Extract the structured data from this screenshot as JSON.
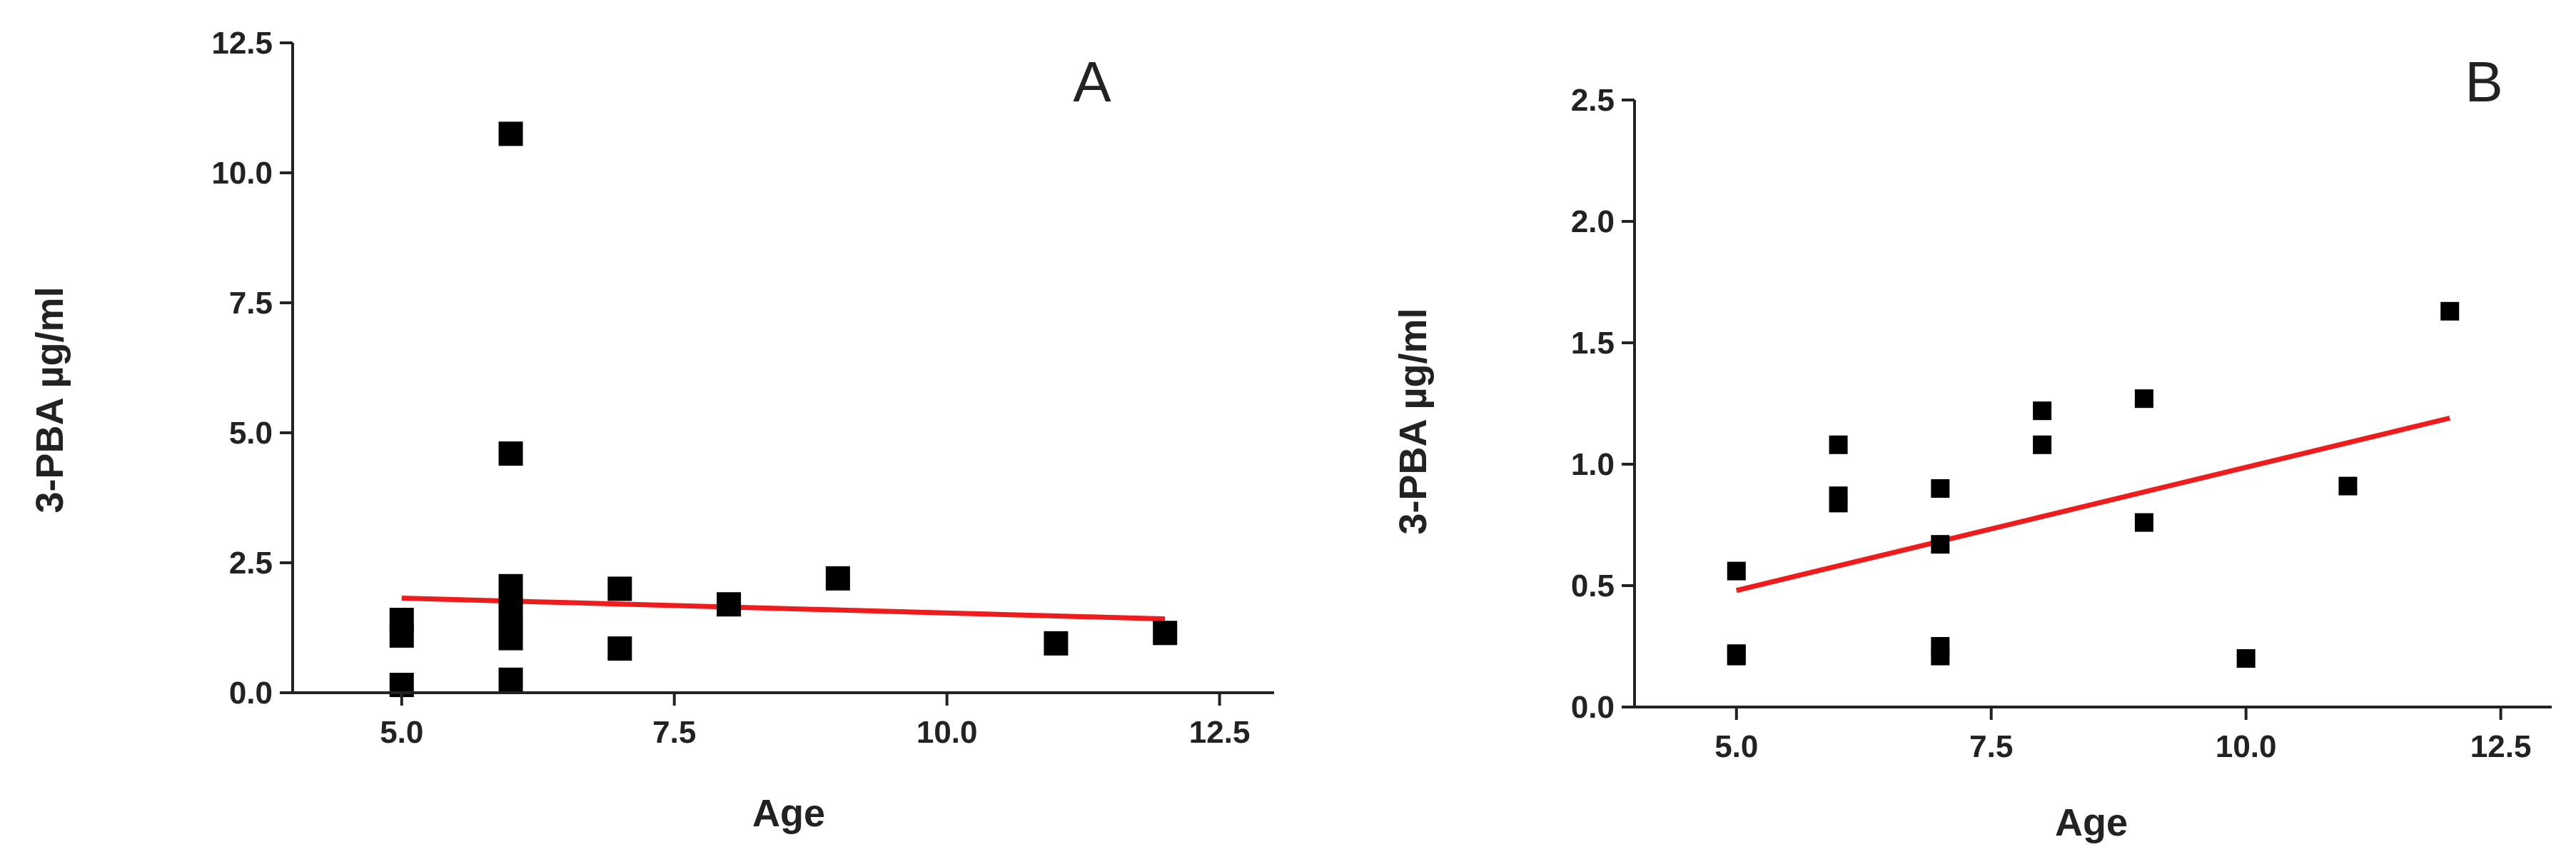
{
  "chart_data": [
    {
      "type": "scatter",
      "panel_label": "A",
      "xlabel": "Age",
      "ylabel": "3-PBA µg/ml",
      "xlim": [
        4.0,
        13.0
      ],
      "ylim": [
        0.0,
        12.5
      ],
      "x_ticks": [
        "5.0",
        "7.5",
        "10.0",
        "12.5"
      ],
      "y_ticks": [
        "0.0",
        "2.5",
        "5.0",
        "7.5",
        "10.0",
        "12.5"
      ],
      "grid": false,
      "points": [
        {
          "x": 5,
          "y": 1.4
        },
        {
          "x": 5,
          "y": 1.1
        },
        {
          "x": 5,
          "y": 0.15
        },
        {
          "x": 6,
          "y": 10.75
        },
        {
          "x": 6,
          "y": 4.6
        },
        {
          "x": 6,
          "y": 2.05
        },
        {
          "x": 6,
          "y": 1.6
        },
        {
          "x": 6,
          "y": 1.25
        },
        {
          "x": 6,
          "y": 1.05
        },
        {
          "x": 6,
          "y": 0.25
        },
        {
          "x": 7,
          "y": 2.0
        },
        {
          "x": 7,
          "y": 0.85
        },
        {
          "x": 8,
          "y": 1.7
        },
        {
          "x": 9,
          "y": 2.2
        },
        {
          "x": 11,
          "y": 0.95
        },
        {
          "x": 12,
          "y": 1.15
        }
      ],
      "fit_line": {
        "x": [
          5,
          12
        ],
        "y": [
          1.82,
          1.42
        ],
        "color": "#ee1c1c"
      }
    },
    {
      "type": "scatter",
      "panel_label": "B",
      "xlabel": "Age",
      "ylabel": "3-PBA µg/ml",
      "xlim": [
        4.0,
        13.0
      ],
      "ylim": [
        0.0,
        2.5
      ],
      "x_ticks": [
        "5.0",
        "7.5",
        "10.0",
        "12.5"
      ],
      "y_ticks": [
        "0.0",
        "0.5",
        "1.0",
        "1.5",
        "2.0",
        "2.5"
      ],
      "grid": false,
      "points": [
        {
          "x": 5,
          "y": 0.56
        },
        {
          "x": 5,
          "y": 0.22
        },
        {
          "x": 5,
          "y": 0.21
        },
        {
          "x": 6,
          "y": 1.08
        },
        {
          "x": 6,
          "y": 0.87
        },
        {
          "x": 6,
          "y": 0.84
        },
        {
          "x": 7,
          "y": 0.9
        },
        {
          "x": 7,
          "y": 0.67
        },
        {
          "x": 7,
          "y": 0.25
        },
        {
          "x": 7,
          "y": 0.21
        },
        {
          "x": 8,
          "y": 1.22
        },
        {
          "x": 8,
          "y": 1.08
        },
        {
          "x": 9,
          "y": 1.27
        },
        {
          "x": 9,
          "y": 0.76
        },
        {
          "x": 10,
          "y": 0.2
        },
        {
          "x": 11,
          "y": 0.91
        },
        {
          "x": 12,
          "y": 1.63
        }
      ],
      "fit_line": {
        "x": [
          5,
          12
        ],
        "y": [
          0.48,
          1.19
        ],
        "color": "#ee1c1c"
      }
    }
  ]
}
